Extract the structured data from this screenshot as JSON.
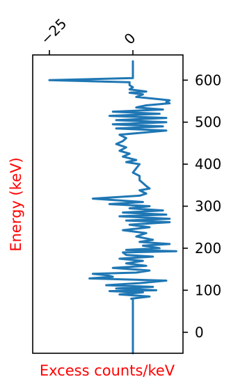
{
  "chart_data": {
    "type": "line",
    "orientation": "vertical",
    "xlabel": "Excess counts/keV",
    "ylabel": "Energy (keV)",
    "label_color": "#ff0000",
    "line_color": "#1f77b4",
    "xlim": [
      -30,
      15
    ],
    "ylim": [
      -50,
      660
    ],
    "x_ticks": [
      -25,
      0
    ],
    "x_tick_labels": [
      "−25",
      "0"
    ],
    "x_ticks_position": "top",
    "y_ticks": [
      0,
      100,
      200,
      300,
      400,
      500,
      600
    ],
    "y_tick_labels": [
      "0",
      "100",
      "200",
      "300",
      "400",
      "500",
      "600"
    ],
    "y_ticks_position": "right",
    "grid": false,
    "series": [
      {
        "points": [
          [
            0,
            -50
          ],
          [
            0,
            78
          ],
          [
            -0.5,
            80
          ],
          [
            5,
            85
          ],
          [
            -4,
            90
          ],
          [
            3,
            95
          ],
          [
            -7,
            98
          ],
          [
            7,
            100
          ],
          [
            -5,
            104
          ],
          [
            6,
            108
          ],
          [
            -8,
            112
          ],
          [
            2,
            117
          ],
          [
            10,
            123
          ],
          [
            -13,
            128
          ],
          [
            -6,
            132
          ],
          [
            -8,
            136
          ],
          [
            -12,
            139
          ],
          [
            1,
            142
          ],
          [
            5,
            147
          ],
          [
            -6,
            153
          ],
          [
            4,
            158
          ],
          [
            -2,
            164
          ],
          [
            3,
            170
          ],
          [
            -4,
            175
          ],
          [
            6,
            180
          ],
          [
            -2,
            184
          ],
          [
            -3,
            190
          ],
          [
            13,
            193
          ],
          [
            -2,
            196
          ],
          [
            8,
            200
          ],
          [
            3,
            206
          ],
          [
            11,
            210
          ],
          [
            2,
            215
          ],
          [
            6,
            220
          ],
          [
            1,
            228
          ],
          [
            4,
            236
          ],
          [
            -3,
            243
          ],
          [
            5,
            250
          ],
          [
            -1,
            256
          ],
          [
            11,
            262
          ],
          [
            -2,
            266
          ],
          [
            11,
            270
          ],
          [
            -4,
            276
          ],
          [
            10,
            280
          ],
          [
            -3,
            285
          ],
          [
            9,
            290
          ],
          [
            -1,
            295
          ],
          [
            5,
            300
          ],
          [
            -7,
            305
          ],
          [
            3,
            310
          ],
          [
            -12,
            318
          ],
          [
            2,
            325
          ],
          [
            4,
            330
          ],
          [
            2,
            338
          ],
          [
            5,
            342
          ],
          [
            4,
            348
          ],
          [
            3,
            355
          ],
          [
            2,
            362
          ],
          [
            2,
            372
          ],
          [
            0,
            380
          ],
          [
            1,
            390
          ],
          [
            2,
            400
          ],
          [
            -2,
            405
          ],
          [
            1,
            410
          ],
          [
            -3,
            418
          ],
          [
            -1,
            425
          ],
          [
            -4,
            432
          ],
          [
            -2,
            440
          ],
          [
            -5,
            448
          ],
          [
            -3,
            455
          ],
          [
            -2,
            462
          ],
          [
            -4,
            470
          ],
          [
            10,
            480
          ],
          [
            -5,
            485
          ],
          [
            9,
            490
          ],
          [
            -6,
            495
          ],
          [
            10,
            500
          ],
          [
            -5,
            505
          ],
          [
            10,
            510
          ],
          [
            -7,
            515
          ],
          [
            8,
            520
          ],
          [
            -6,
            525
          ],
          [
            9,
            530
          ],
          [
            1,
            535
          ],
          [
            4,
            540
          ],
          [
            11,
            545
          ],
          [
            10,
            548
          ],
          [
            11,
            552
          ],
          [
            6,
            556
          ],
          [
            1,
            560
          ],
          [
            3,
            566
          ],
          [
            -1,
            570
          ],
          [
            4,
            573
          ],
          [
            -1,
            578
          ],
          [
            0,
            583
          ],
          [
            -1,
            588
          ],
          [
            -1,
            595
          ],
          [
            -25,
            600
          ],
          [
            0,
            605
          ],
          [
            0,
            615
          ],
          [
            0,
            630
          ],
          [
            0,
            645
          ]
        ]
      }
    ]
  }
}
